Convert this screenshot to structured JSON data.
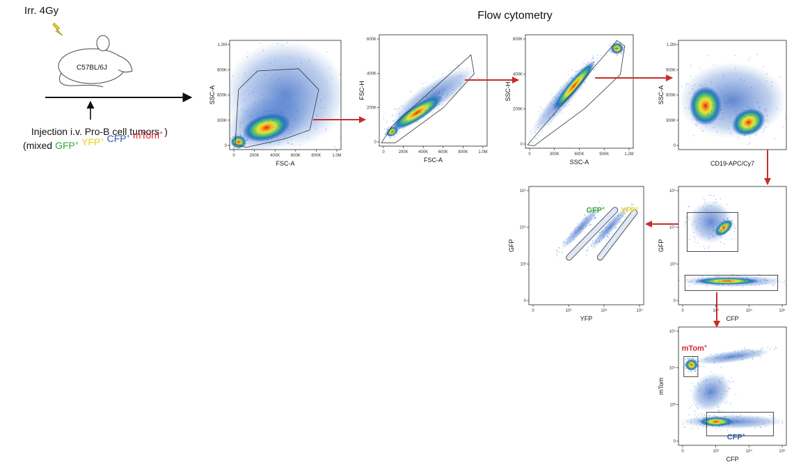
{
  "left": {
    "irradiation": "Irr. 4Gy",
    "mouse": "C57BL/6J",
    "injection": "Injection i.v. Pro-B cell tumors",
    "mix_open": "(mixed",
    "mix_close": ")",
    "markers": [
      {
        "name": "GFP",
        "sup": "+",
        "color": "#3aa635"
      },
      {
        "name": "YFP",
        "sup": "+",
        "color": "#e8d21a"
      },
      {
        "name": "CFP",
        "sup": "+",
        "color": "#2a5caa"
      },
      {
        "name": "mTom",
        "sup": "+",
        "color": "#d6252b"
      }
    ]
  },
  "title": "Flow cytometry",
  "plots": [
    {
      "x_label": "FSC-A",
      "y_label": "SSC-A",
      "x_ticks": [
        "0",
        "200K",
        "400K",
        "600K",
        "800K",
        "1.0M"
      ],
      "y_ticks": [
        "0",
        "300K",
        "600K",
        "900K",
        "1.2M"
      ],
      "gates": []
    },
    {
      "x_label": "FSC-A",
      "y_label": "FSC-H",
      "x_ticks": [
        "0",
        "200K",
        "400K",
        "600K",
        "800K",
        "1.0M"
      ],
      "y_ticks": [
        "0",
        "200K",
        "400K",
        "600K"
      ],
      "gates": []
    },
    {
      "x_label": "SSC-A",
      "y_label": "SSC-H",
      "x_ticks": [
        "0",
        "300K",
        "600K",
        "900K",
        "1.2M"
      ],
      "y_ticks": [
        "0",
        "200K",
        "400K",
        "600K"
      ],
      "gates": []
    },
    {
      "x_label": "CD19-APC/Cy7",
      "y_label": "SSC-A",
      "x_ticks": [],
      "y_ticks": [
        "0",
        "300K",
        "600K",
        "900K",
        "1.2M"
      ],
      "gates": []
    },
    {
      "x_label": "CFP",
      "y_label": "GFP",
      "x_ticks": [
        "0",
        "10³",
        "10⁴",
        "10⁵"
      ],
      "y_ticks": [
        "0",
        "10³",
        "10⁴",
        "10⁵"
      ],
      "gates": []
    },
    {
      "x_label": "YFP",
      "y_label": "GFP",
      "x_ticks": [
        "0",
        "10³",
        "10⁴",
        "10⁵"
      ],
      "y_ticks": [
        "0",
        "10³",
        "10⁴",
        "10⁵"
      ],
      "gates": [
        {
          "name": "GFP",
          "sup": "+",
          "color": "#3aa635"
        },
        {
          "name": "YFP",
          "sup": "+",
          "color": "#e8d21a"
        }
      ]
    },
    {
      "x_label": "CFP",
      "y_label": "mTom",
      "x_ticks": [
        "0",
        "10³",
        "10⁴",
        "10⁵"
      ],
      "y_ticks": [
        "0",
        "10³",
        "10⁴",
        "10⁵"
      ],
      "gates": [
        {
          "name": "mTom",
          "sup": "+",
          "color": "#d6252b"
        },
        {
          "name": "CFP",
          "sup": "+",
          "color": "#2a5caa"
        }
      ]
    }
  ]
}
